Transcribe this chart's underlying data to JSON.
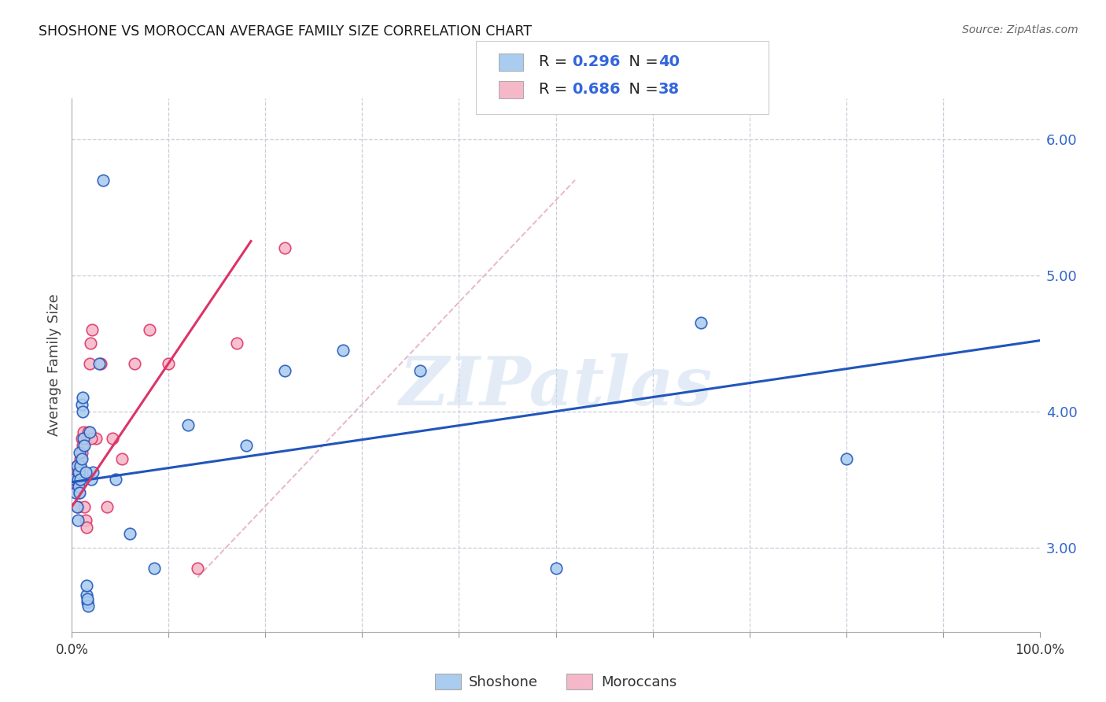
{
  "title": "SHOSHONE VS MOROCCAN AVERAGE FAMILY SIZE CORRELATION CHART",
  "source_text": "Source: ZipAtlas.com",
  "ylabel": "Average Family Size",
  "watermark": "ZIPatlas",
  "legend_label1": "Shoshone",
  "legend_label2": "Moroccans",
  "r_blue": "0.296",
  "n_blue": "40",
  "r_pink": "0.686",
  "n_pink": "38",
  "xlim": [
    0.0,
    1.0
  ],
  "ylim": [
    2.38,
    6.3
  ],
  "shoshone_color": "#aaccee",
  "moroccan_color": "#f5b8c8",
  "trend_blue": "#2255bb",
  "trend_pink": "#dd3366",
  "ref_line_color": "#e8b8c8",
  "background_color": "#ffffff",
  "grid_color": "#ccccdd",
  "shoshone_x": [
    0.003,
    0.004,
    0.005,
    0.005,
    0.006,
    0.006,
    0.007,
    0.007,
    0.008,
    0.008,
    0.009,
    0.009,
    0.01,
    0.01,
    0.011,
    0.011,
    0.012,
    0.013,
    0.015,
    0.016,
    0.017,
    0.018,
    0.02,
    0.022,
    0.028,
    0.032,
    0.045,
    0.06,
    0.085,
    0.12,
    0.18,
    0.22,
    0.28,
    0.36,
    0.5,
    0.65,
    0.8,
    0.014,
    0.015,
    0.016
  ],
  "shoshone_y": [
    3.5,
    3.4,
    3.6,
    3.3,
    3.5,
    3.2,
    3.55,
    3.45,
    3.7,
    3.4,
    3.5,
    3.6,
    3.65,
    4.05,
    4.0,
    4.1,
    3.8,
    3.75,
    2.65,
    2.6,
    2.57,
    3.85,
    3.5,
    3.55,
    4.35,
    5.7,
    3.5,
    3.1,
    2.85,
    3.9,
    3.75,
    4.3,
    4.45,
    4.3,
    2.85,
    4.65,
    3.65,
    3.55,
    2.72,
    2.62
  ],
  "moroccan_x": [
    0.002,
    0.003,
    0.004,
    0.004,
    0.005,
    0.005,
    0.006,
    0.006,
    0.007,
    0.007,
    0.008,
    0.008,
    0.009,
    0.009,
    0.01,
    0.01,
    0.011,
    0.012,
    0.013,
    0.014,
    0.016,
    0.017,
    0.019,
    0.021,
    0.025,
    0.03,
    0.036,
    0.042,
    0.052,
    0.065,
    0.08,
    0.1,
    0.13,
    0.17,
    0.22,
    0.015,
    0.018,
    0.02
  ],
  "moroccan_y": [
    3.5,
    3.45,
    3.5,
    3.55,
    3.6,
    3.45,
    3.55,
    3.3,
    3.4,
    3.5,
    3.55,
    3.6,
    3.6,
    3.65,
    3.7,
    3.8,
    3.75,
    3.85,
    3.3,
    3.2,
    3.8,
    3.85,
    4.5,
    4.6,
    3.8,
    4.35,
    3.3,
    3.8,
    3.65,
    4.35,
    4.6,
    4.35,
    2.85,
    4.5,
    5.2,
    3.15,
    4.35,
    3.8
  ],
  "blue_trend": [
    0.0,
    3.48,
    1.0,
    4.52
  ],
  "pink_trend": [
    0.0,
    3.3,
    0.185,
    5.25
  ],
  "ref_line": [
    0.13,
    2.78,
    0.52,
    5.7
  ],
  "marker_size": 110
}
